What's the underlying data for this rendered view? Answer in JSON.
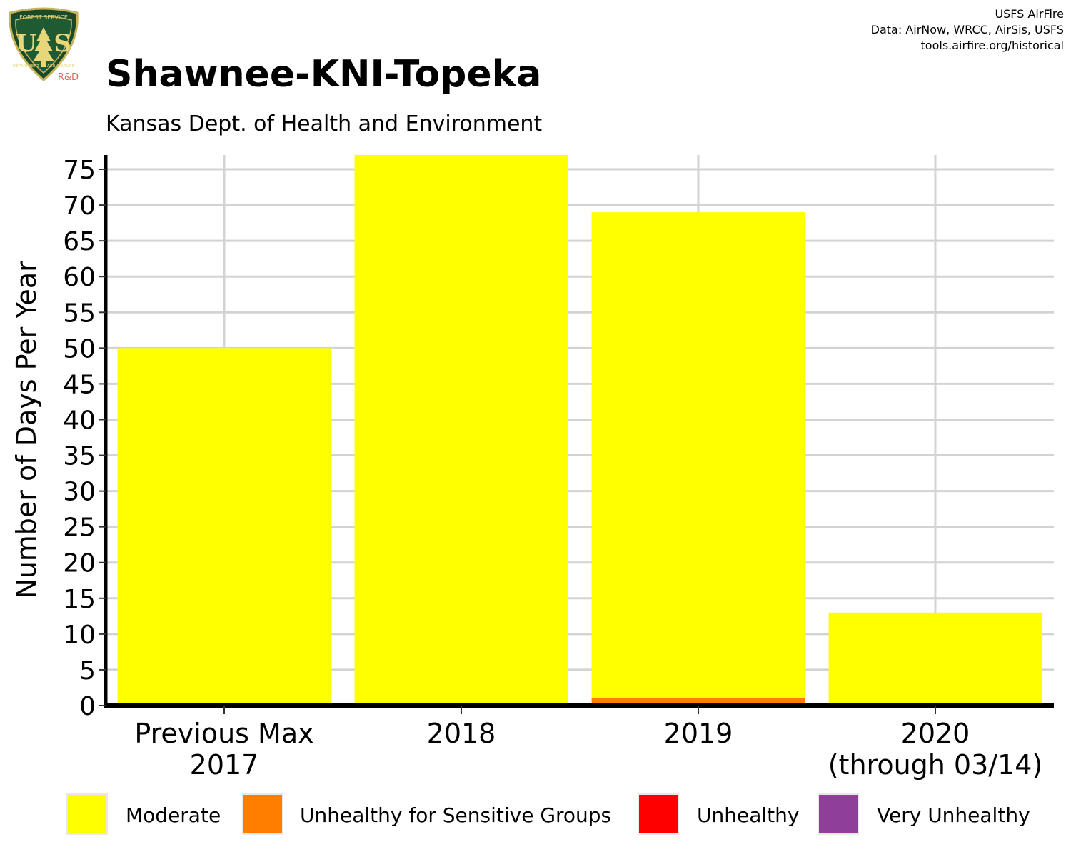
{
  "header": {
    "title": "Shawnee-KNI-Topeka",
    "subtitle": "Kansas Dept. of Health and Environment",
    "credits": [
      "USFS AirFire",
      "Data: AirNow, WRCC, AirSis, USFS",
      "tools.airfire.org/historical"
    ]
  },
  "logo": {
    "top_text": "FOREST SERVICE",
    "letters": "U  S",
    "bottom_text": "DEPARTMENT OF AGRICULTURE",
    "badge": "R&D"
  },
  "chart_data": {
    "type": "bar",
    "stacked": true,
    "ylabel": "Number of Days Per Year",
    "xlabel": "",
    "ylim": [
      0,
      77
    ],
    "yticks": [
      0,
      5,
      10,
      15,
      20,
      25,
      30,
      35,
      40,
      45,
      50,
      55,
      60,
      65,
      70,
      75
    ],
    "grid": true,
    "legend_position": "bottom",
    "categories": [
      [
        "Previous Max",
        "2017"
      ],
      [
        "2018"
      ],
      [
        "2019"
      ],
      [
        "2020",
        "(through 03/14)"
      ]
    ],
    "series": [
      {
        "name": "Moderate",
        "color": "#FFFF00",
        "values": [
          50,
          77,
          68,
          13
        ]
      },
      {
        "name": "Unhealthy for Sensitive Groups",
        "color": "#FF7E00",
        "values": [
          0,
          0,
          1,
          0
        ]
      },
      {
        "name": "Unhealthy",
        "color": "#FF0000",
        "values": [
          0,
          0,
          0,
          0
        ]
      },
      {
        "name": "Very Unhealthy",
        "color": "#8F3F97",
        "values": [
          0,
          0,
          0,
          0
        ]
      }
    ]
  }
}
